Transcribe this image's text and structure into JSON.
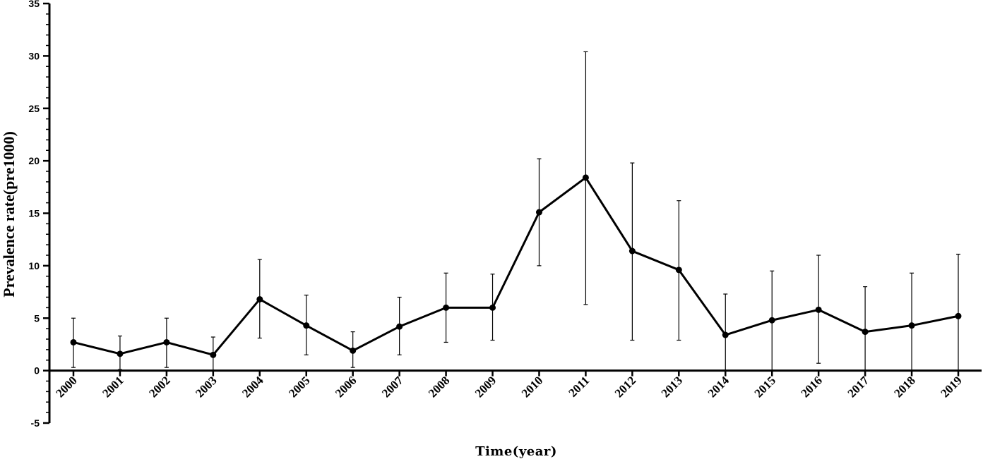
{
  "chart_data": {
    "type": "line",
    "title": "",
    "xlabel": "Time(year)",
    "ylabel": "Prevalence rate(pre1000)",
    "ylim": [
      -5,
      35
    ],
    "yticks": [
      -5,
      0,
      5,
      10,
      15,
      20,
      25,
      30,
      35
    ],
    "grid": false,
    "categories": [
      "2000",
      "2001",
      "2002",
      "2003",
      "2004",
      "2005",
      "2006",
      "2007",
      "2008",
      "2009",
      "2010",
      "2011",
      "2012",
      "2013",
      "2014",
      "2015",
      "2016",
      "2017",
      "2018",
      "2019"
    ],
    "series": [
      {
        "values": [
          2.7,
          1.6,
          2.7,
          1.5,
          6.8,
          4.3,
          1.9,
          4.2,
          6.0,
          6.0,
          15.1,
          18.4,
          11.4,
          9.6,
          3.4,
          4.8,
          5.8,
          3.7,
          4.3,
          5.2
        ],
        "error_low": [
          0.3,
          0.1,
          0.3,
          0.0,
          3.1,
          1.5,
          0.3,
          1.5,
          2.7,
          2.9,
          10.0,
          6.3,
          2.9,
          2.9,
          0.0,
          0.0,
          0.7,
          0.0,
          0.0,
          0.0
        ],
        "error_high": [
          5.0,
          3.3,
          5.0,
          3.2,
          10.6,
          7.2,
          3.7,
          7.0,
          9.3,
          9.2,
          20.2,
          30.4,
          19.8,
          16.2,
          7.3,
          9.5,
          11.0,
          8.0,
          9.3,
          11.1
        ]
      }
    ]
  },
  "colors": {
    "line": "#000000",
    "background": "#ffffff"
  }
}
